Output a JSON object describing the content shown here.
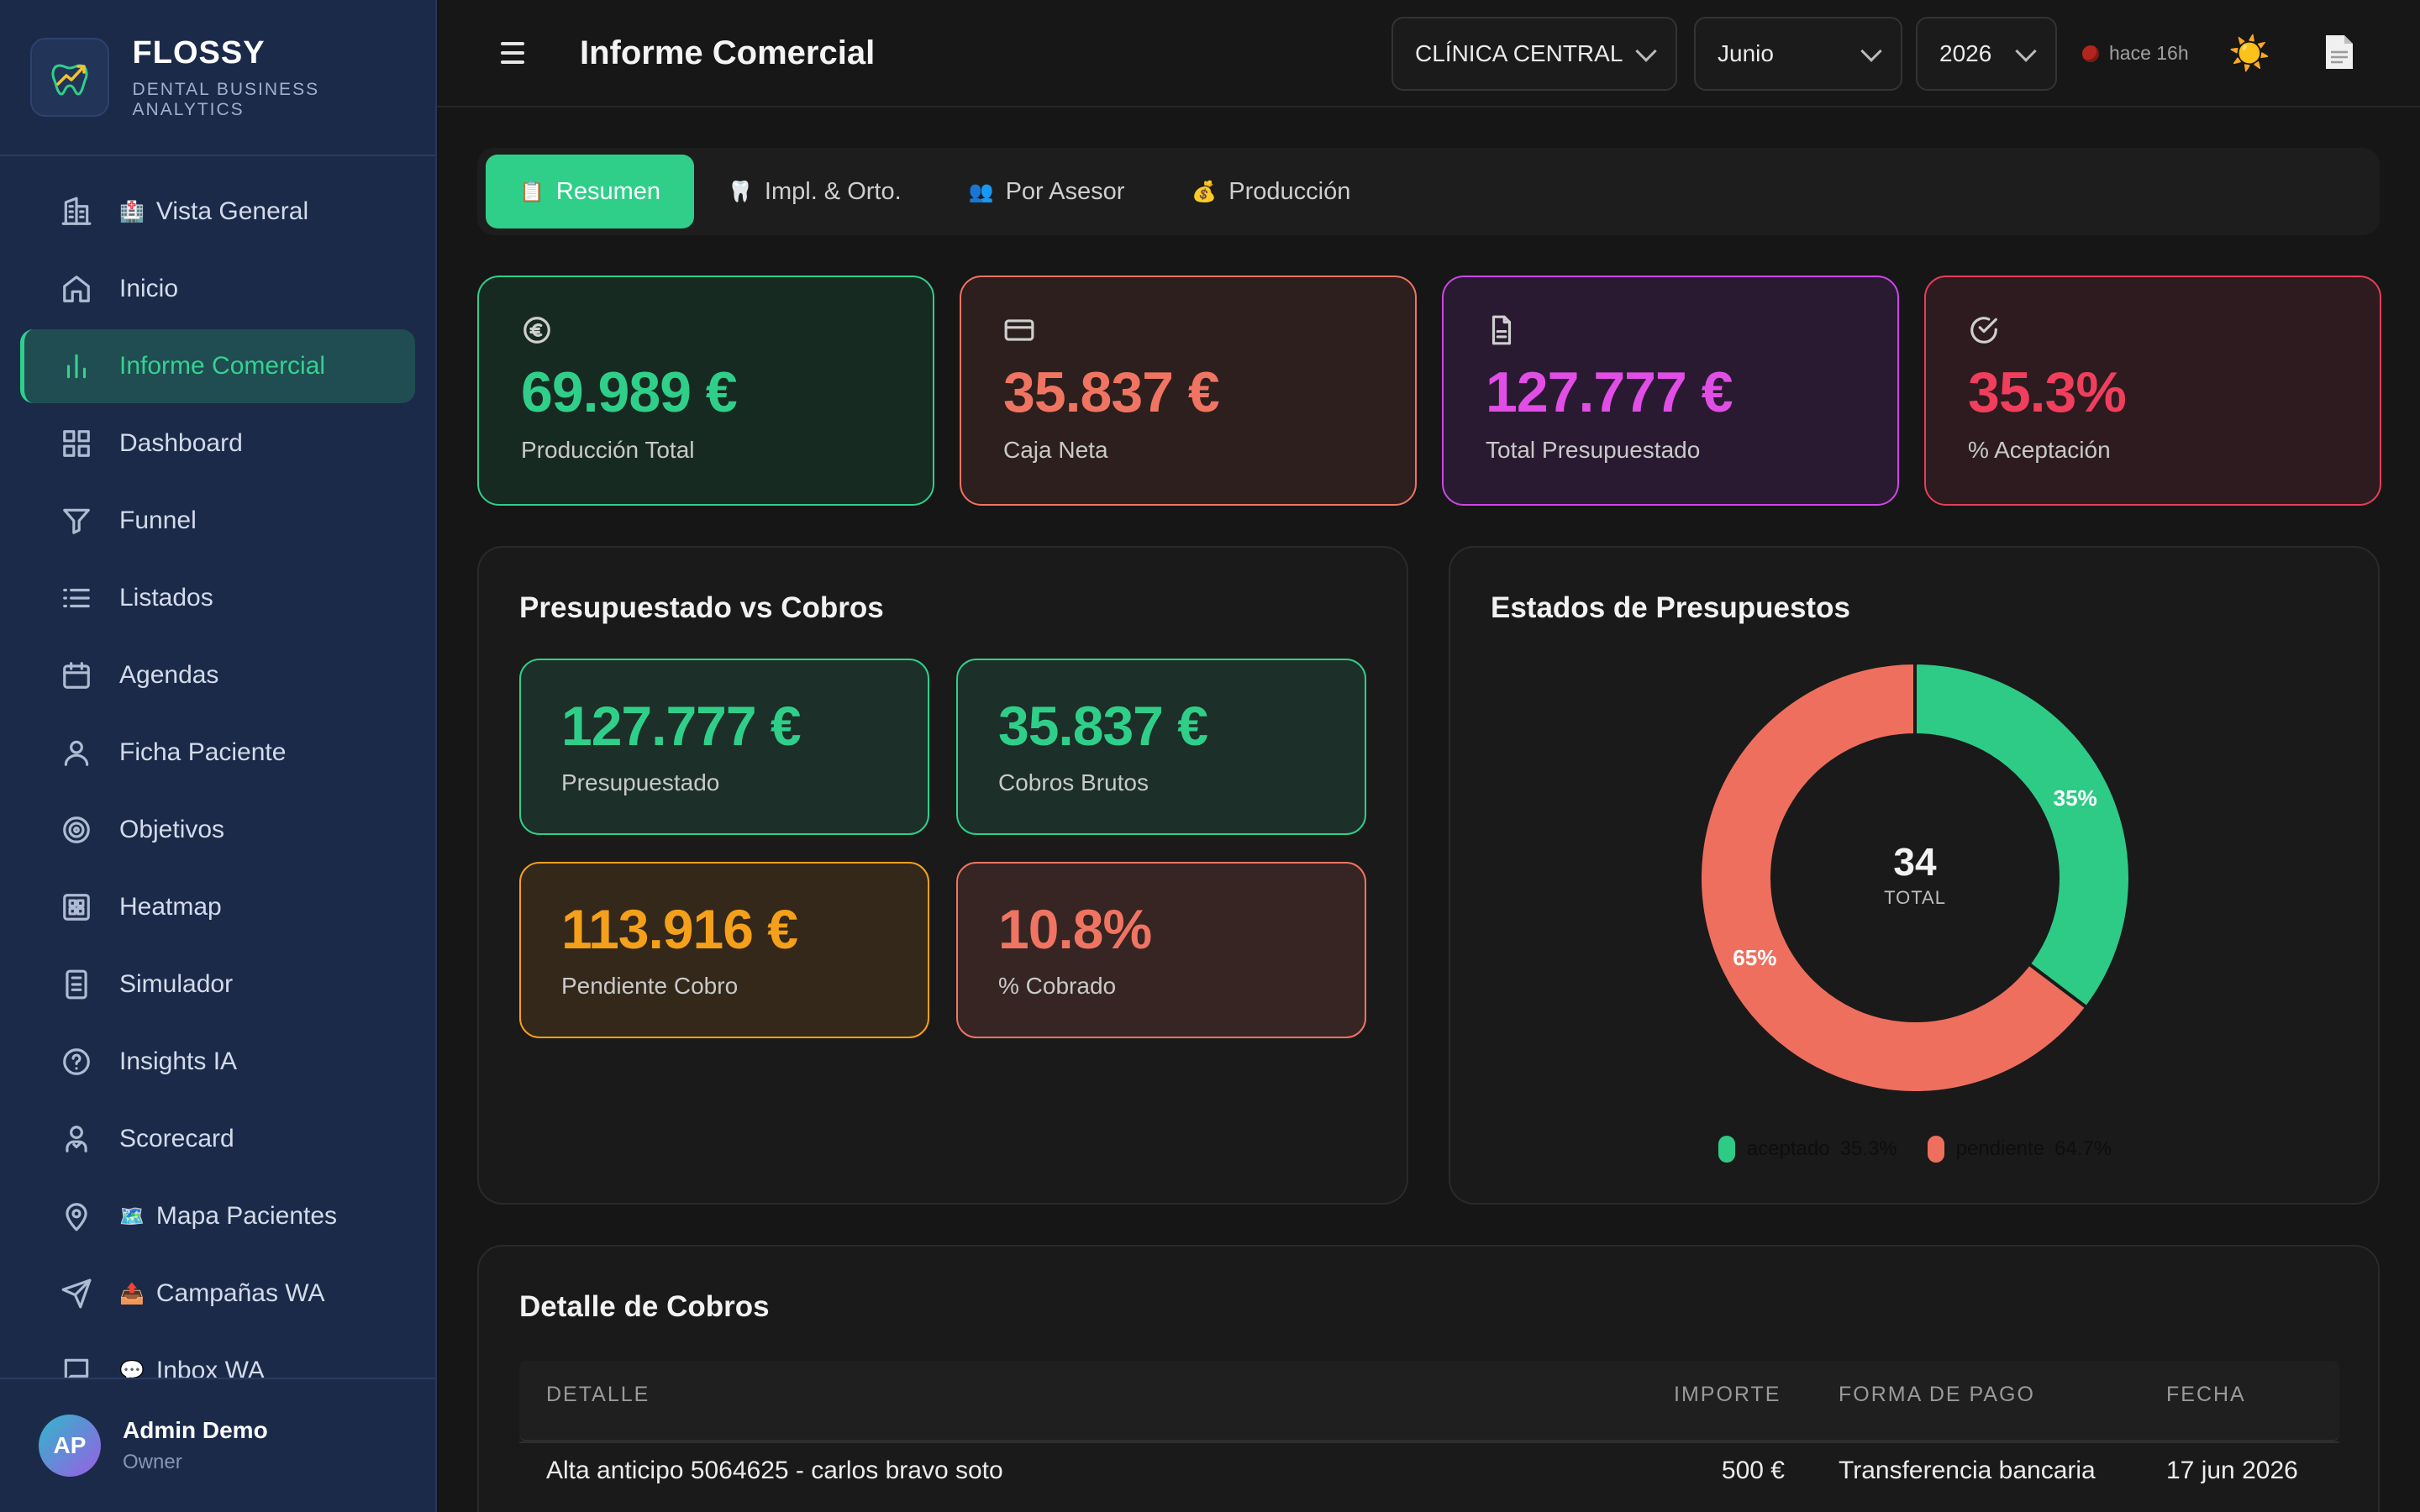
{
  "brand": {
    "name": "FLOSSY",
    "subtitle": "DENTAL BUSINESS ANALYTICS"
  },
  "sidebar": {
    "items": [
      {
        "label": "Vista General",
        "icon": "building-icon",
        "emoji": "🏥"
      },
      {
        "label": "Inicio",
        "icon": "home-icon"
      },
      {
        "label": "Informe Comercial",
        "icon": "bar-chart-icon",
        "active": true
      },
      {
        "label": "Dashboard",
        "icon": "grid-icon"
      },
      {
        "label": "Funnel",
        "icon": "funnel-icon"
      },
      {
        "label": "Listados",
        "icon": "list-icon"
      },
      {
        "label": "Agendas",
        "icon": "calendar-icon"
      },
      {
        "label": "Ficha Paciente",
        "icon": "user-icon"
      },
      {
        "label": "Objetivos",
        "icon": "target-icon"
      },
      {
        "label": "Heatmap",
        "icon": "heatmap-icon"
      },
      {
        "label": "Simulador",
        "icon": "calculator-icon"
      },
      {
        "label": "Insights IA",
        "icon": "help-circle-icon"
      },
      {
        "label": "Scorecard",
        "icon": "user-check-icon"
      },
      {
        "label": "Mapa Pacientes",
        "icon": "map-pin-icon",
        "emoji": "🗺️"
      },
      {
        "label": "Campañas WA",
        "icon": "send-icon",
        "emoji": "📤"
      },
      {
        "label": "Inbox WA",
        "icon": "message-icon",
        "emoji": "💬"
      }
    ]
  },
  "user": {
    "initials": "AP",
    "name": "Admin Demo",
    "role": "Owner"
  },
  "header": {
    "title": "Informe Comercial",
    "clinic": "CLÍNICA CENTRAL",
    "month": "Junio",
    "year": "2026",
    "sync_status": "hace 16h"
  },
  "tabs": [
    {
      "label": "Resumen",
      "emoji": "📋",
      "active": true
    },
    {
      "label": "Impl. & Orto.",
      "emoji": "🦷"
    },
    {
      "label": "Por Asesor",
      "emoji": "👥"
    },
    {
      "label": "Producción",
      "emoji": "💰"
    }
  ],
  "kpis": [
    {
      "value": "69.989 €",
      "label": "Producción Total",
      "icon": "euro-icon",
      "color": "#2fcf8a"
    },
    {
      "value": "35.837 €",
      "label": "Caja Neta",
      "icon": "credit-card-icon",
      "color": "#f07462"
    },
    {
      "value": "127.777 €",
      "label": "Total Presupuestado",
      "icon": "file-icon",
      "color": "#e14ee6"
    },
    {
      "value": "35.3%",
      "label": "% Aceptación",
      "icon": "check-circle-icon",
      "color": "#f03e5c"
    }
  ],
  "budget_panel": {
    "title": "Presupuestado vs Cobros",
    "cards": [
      {
        "value": "127.777 €",
        "label": "Presupuestado",
        "color": "#2fcf8a"
      },
      {
        "value": "35.837 €",
        "label": "Cobros Brutos",
        "color": "#2fcf8a"
      },
      {
        "value": "113.916 €",
        "label": "Pendiente Cobro",
        "color": "#f5a01a"
      },
      {
        "value": "10.8%",
        "label": "% Cobrado",
        "color": "#f07462"
      }
    ]
  },
  "states_panel": {
    "title": "Estados de Presupuestos",
    "center_value": "34",
    "center_label": "TOTAL"
  },
  "chart_data": {
    "type": "pie",
    "categories": [
      "aceptado",
      "pendiente"
    ],
    "values": [
      35.3,
      64.7
    ],
    "slice_labels": [
      "35%",
      "65%"
    ],
    "legend_values": [
      "35.3%",
      "64.7%"
    ],
    "colors": [
      "#2ecb87",
      "#ef6f5e"
    ],
    "title": "",
    "legend": "bottom"
  },
  "payments": {
    "title": "Detalle de Cobros",
    "columns": [
      "DETALLE",
      "IMPORTE",
      "FORMA DE PAGO",
      "FECHA"
    ],
    "rows": [
      {
        "detail": "Alta anticipo 5064625 - carlos bravo soto",
        "amount": "500 €",
        "method": "Transferencia bancaria",
        "date": "17 jun 2026"
      }
    ]
  }
}
